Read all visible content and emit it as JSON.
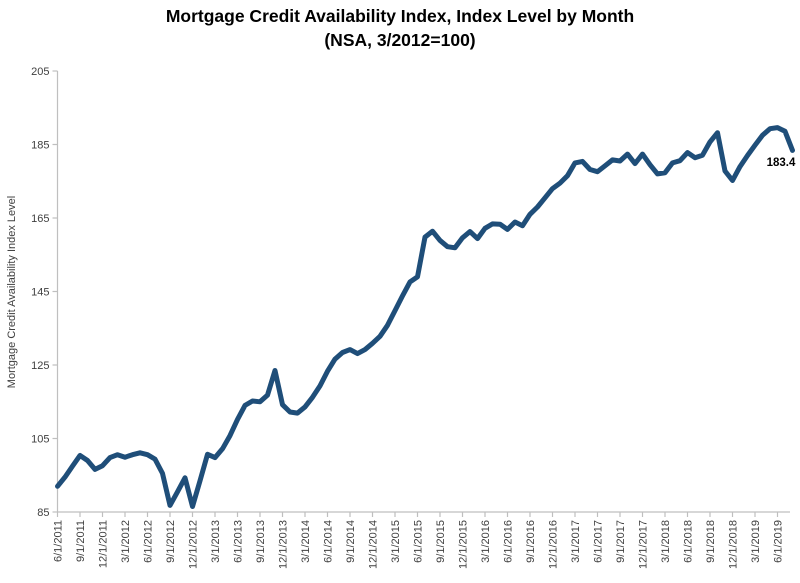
{
  "page": {
    "background": "#FFFFFF"
  },
  "title": {
    "line1": "Mortgage Credit Availability Index, Index Level by Month",
    "line2": "(NSA, 3/2012=100)"
  },
  "chart_data": {
    "type": "line",
    "title": "Mortgage Credit Availability Index, Index Level by Month",
    "subtitle": "(NSA, 3/2012=100)",
    "xlabel": "",
    "ylabel": "Mortgage Credit Availability Index Level",
    "ylim": [
      85,
      205
    ],
    "ytick_interval": 20,
    "yticks": [
      85,
      105,
      125,
      145,
      165,
      185,
      205
    ],
    "grid": "off",
    "legend": "none",
    "line_color": "#1F4E79",
    "axis_color": "#BFBFBF",
    "tick_label_color": "#404040",
    "title_color": "#000000",
    "xtick_labels": [
      "6/1/2011",
      "9/1/2011",
      "12/1/2011",
      "3/1/2012",
      "6/1/2012",
      "9/1/2012",
      "12/1/2012",
      "3/1/2013",
      "6/1/2013",
      "9/1/2013",
      "12/1/2013",
      "3/1/2014",
      "6/1/2014",
      "9/1/2014",
      "12/1/2014",
      "3/1/2015",
      "6/1/2015",
      "9/1/2015",
      "12/1/2015",
      "3/1/2016",
      "6/1/2016",
      "9/1/2016",
      "12/1/2016",
      "3/1/2017",
      "6/1/2017",
      "9/1/2017",
      "12/1/2017",
      "3/1/2018",
      "6/1/2018",
      "9/1/2018",
      "12/1/2018",
      "3/1/2019",
      "6/1/2019"
    ],
    "series_name": "Mortgage Credit Availability Index (NSA)",
    "months": [
      "2011-06",
      "2011-07",
      "2011-08",
      "2011-09",
      "2011-10",
      "2011-11",
      "2011-12",
      "2012-01",
      "2012-02",
      "2012-03",
      "2012-04",
      "2012-05",
      "2012-06",
      "2012-07",
      "2012-08",
      "2012-09",
      "2012-10",
      "2012-11",
      "2012-12",
      "2013-01",
      "2013-02",
      "2013-03",
      "2013-04",
      "2013-05",
      "2013-06",
      "2013-07",
      "2013-08",
      "2013-09",
      "2013-10",
      "2013-11",
      "2013-12",
      "2014-01",
      "2014-02",
      "2014-03",
      "2014-04",
      "2014-05",
      "2014-06",
      "2014-07",
      "2014-08",
      "2014-09",
      "2014-10",
      "2014-11",
      "2014-12",
      "2015-01",
      "2015-02",
      "2015-03",
      "2015-04",
      "2015-05",
      "2015-06",
      "2015-07",
      "2015-08",
      "2015-09",
      "2015-10",
      "2015-11",
      "2015-12",
      "2016-01",
      "2016-02",
      "2016-03",
      "2016-04",
      "2016-05",
      "2016-06",
      "2016-07",
      "2016-08",
      "2016-09",
      "2016-10",
      "2016-11",
      "2016-12",
      "2017-01",
      "2017-02",
      "2017-03",
      "2017-04",
      "2017-05",
      "2017-06",
      "2017-07",
      "2017-08",
      "2017-09",
      "2017-10",
      "2017-11",
      "2017-12",
      "2018-01",
      "2018-02",
      "2018-03",
      "2018-04",
      "2018-05",
      "2018-06",
      "2018-07",
      "2018-08",
      "2018-09",
      "2018-10",
      "2018-11",
      "2018-12",
      "2019-01",
      "2019-02",
      "2019-03",
      "2019-04",
      "2019-05",
      "2019-06",
      "2019-07",
      "2019-08"
    ],
    "values": [
      92.0,
      94.5,
      97.5,
      100.4,
      99.0,
      96.6,
      97.6,
      99.8,
      100.6,
      99.9,
      100.6,
      101.1,
      100.6,
      99.4,
      95.5,
      86.8,
      90.5,
      94.3,
      86.5,
      93.5,
      100.7,
      99.8,
      102.2,
      105.8,
      110.2,
      114.0,
      115.2,
      115.0,
      116.8,
      123.5,
      114.2,
      112.2,
      111.9,
      113.6,
      116.2,
      119.3,
      123.3,
      126.6,
      128.4,
      129.2,
      128.1,
      129.2,
      130.9,
      132.8,
      135.8,
      139.8,
      143.8,
      147.6,
      149.0,
      159.8,
      161.4,
      158.9,
      157.2,
      156.9,
      159.6,
      161.3,
      159.4,
      162.2,
      163.4,
      163.3,
      161.9,
      163.9,
      162.9,
      166.0,
      168.0,
      170.5,
      173.0,
      174.5,
      176.5,
      180.0,
      180.4,
      178.2,
      177.6,
      179.2,
      180.8,
      180.5,
      182.4,
      179.8,
      182.4,
      179.5,
      177.0,
      177.3,
      180.0,
      180.6,
      182.8,
      181.4,
      182.1,
      185.7,
      188.2,
      177.8,
      175.2,
      179.0,
      182.0,
      184.8,
      187.5,
      189.3,
      189.6,
      188.6,
      183.4
    ],
    "end_label": {
      "text": "183.4",
      "value": 183.4
    }
  }
}
